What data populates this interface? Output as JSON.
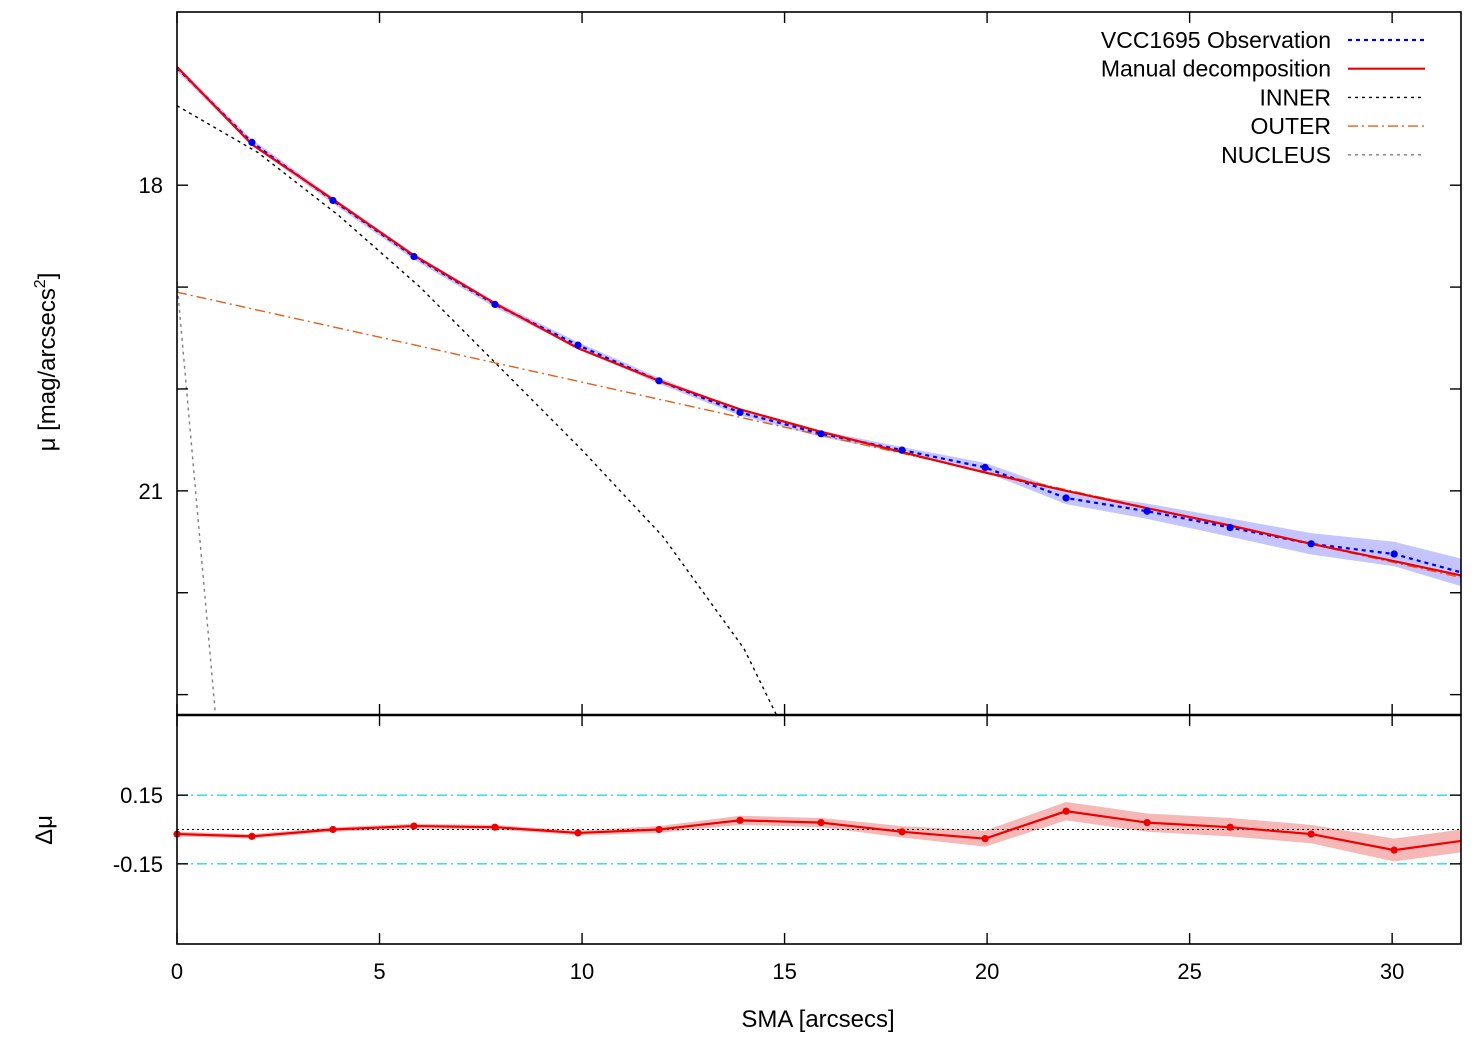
{
  "chart_data": [
    {
      "type": "line",
      "panel": "profile",
      "ylabel": "μ [mag/arcsecs",
      "ylabel_sup": "2",
      "xlim": [
        0,
        31.7
      ],
      "ylim": [
        23.2,
        16.3
      ],
      "y_inverted": true,
      "y_ticks": [
        18,
        21
      ],
      "y_minor_ticks": [
        19,
        20,
        22,
        23
      ],
      "legend_position": "top-right",
      "series": [
        {
          "name": "VCC1695 Observation",
          "color": "#0000ee",
          "style": "dotted-with-points",
          "band_color": "#b0b0ff",
          "x": [
            0,
            1.85,
            3.85,
            5.85,
            7.85,
            9.9,
            11.9,
            13.9,
            15.9,
            17.9,
            19.95,
            21.95,
            23.95,
            26.0,
            28.0,
            30.05,
            31.7
          ],
          "y": [
            16.85,
            17.58,
            18.15,
            18.7,
            19.17,
            19.57,
            19.92,
            20.23,
            20.44,
            20.6,
            20.77,
            21.07,
            21.2,
            21.36,
            21.52,
            21.62,
            21.8
          ]
        },
        {
          "name": "Manual decomposition",
          "color": "#ee0000",
          "style": "solid",
          "x": [
            0,
            1.85,
            3.85,
            5.85,
            7.85,
            9.9,
            11.9,
            13.9,
            15.9,
            17.9,
            19.95,
            21.95,
            23.95,
            26.0,
            28.0,
            30.05,
            31.7
          ],
          "y": [
            16.84,
            17.6,
            18.14,
            18.69,
            19.16,
            19.6,
            19.92,
            20.2,
            20.42,
            20.62,
            20.82,
            21.0,
            21.17,
            21.34,
            21.52,
            21.69,
            21.83
          ]
        },
        {
          "name": "INNER",
          "color": "#000000",
          "style": "dotted",
          "x": [
            0,
            2,
            4,
            6,
            8,
            10,
            12,
            14,
            14.8
          ],
          "y": [
            17.22,
            17.68,
            18.3,
            19.0,
            19.8,
            20.6,
            21.45,
            22.55,
            23.2
          ]
        },
        {
          "name": "OUTER",
          "color": "#e0601c",
          "style": "dash-dot",
          "x": [
            0,
            31.7
          ],
          "y": [
            19.05,
            21.85
          ]
        },
        {
          "name": "NUCLEUS",
          "color": "#808080",
          "style": "dotted",
          "x": [
            0,
            0.95
          ],
          "y": [
            18.95,
            23.2
          ]
        }
      ]
    },
    {
      "type": "line",
      "panel": "residual",
      "xlabel": "SMA [arcsecs]",
      "ylabel": "Δμ",
      "xlim": [
        0,
        31.7
      ],
      "ylim": [
        -0.5,
        0.5
      ],
      "x_ticks": [
        0,
        5,
        10,
        15,
        20,
        25,
        30
      ],
      "y_ticks": [
        0.15,
        -0.15
      ],
      "reference_lines": [
        {
          "y": 0.15,
          "color": "#22dddd",
          "style": "dash-dot"
        },
        {
          "y": -0.15,
          "color": "#22dddd",
          "style": "dash-dot"
        },
        {
          "y": 0,
          "color": "#000000",
          "style": "dotted"
        }
      ],
      "series": [
        {
          "name": "",
          "color": "#ee0000",
          "band_color": "#f4aaaa",
          "x": [
            0,
            1.85,
            3.85,
            5.85,
            7.85,
            9.9,
            11.9,
            13.9,
            15.9,
            17.9,
            19.95,
            21.95,
            23.95,
            26.0,
            28.0,
            30.05,
            31.7
          ],
          "y": [
            -0.02,
            -0.03,
            0.0,
            0.015,
            0.01,
            -0.015,
            0.0,
            0.04,
            0.03,
            -0.01,
            -0.04,
            0.08,
            0.03,
            0.01,
            -0.02,
            -0.09,
            -0.05
          ],
          "err": [
            0.01,
            0.01,
            0.01,
            0.01,
            0.01,
            0.01,
            0.015,
            0.02,
            0.02,
            0.025,
            0.035,
            0.04,
            0.04,
            0.04,
            0.04,
            0.05,
            0.05
          ]
        }
      ]
    }
  ]
}
